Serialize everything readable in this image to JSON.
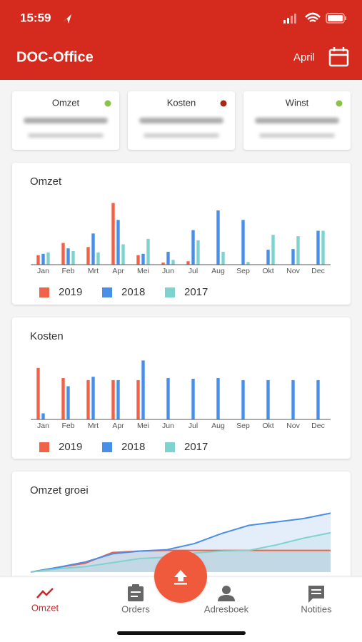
{
  "status_bar": {
    "time": "15:59"
  },
  "header": {
    "title": "DOC-Office",
    "month": "April"
  },
  "summary": [
    {
      "label": "Omzet",
      "color": "#8bc34a"
    },
    {
      "label": "Kosten",
      "color": "#a52714"
    },
    {
      "label": "Winst",
      "color": "#8bc34a"
    }
  ],
  "chart_data": [
    {
      "type": "bar",
      "title": "Omzet",
      "categories": [
        "Jan",
        "Feb",
        "Mrt",
        "Apr",
        "Mei",
        "Jun",
        "Jul",
        "Aug",
        "Sep",
        "Okt",
        "Nov",
        "Dec"
      ],
      "ylim": [
        0,
        100
      ],
      "series": [
        {
          "name": "2019",
          "color": "#f0624a",
          "values": [
            14,
            32,
            26,
            91,
            14,
            3,
            5,
            null,
            null,
            null,
            null,
            null
          ]
        },
        {
          "name": "2018",
          "color": "#4a8fe7",
          "values": [
            16,
            24,
            46,
            66,
            16,
            19,
            51,
            80,
            66,
            22,
            23,
            50
          ]
        },
        {
          "name": "2017",
          "color": "#7ed3cf",
          "values": [
            18,
            20,
            18,
            30,
            38,
            7,
            36,
            19,
            4,
            44,
            42,
            50
          ]
        }
      ]
    },
    {
      "type": "bar",
      "title": "Kosten",
      "categories": [
        "Jan",
        "Feb",
        "Mrt",
        "Apr",
        "Mei",
        "Jun",
        "Jul",
        "Aug",
        "Sep",
        "Okt",
        "Nov",
        "Dec"
      ],
      "ylim": [
        0,
        100
      ],
      "series": [
        {
          "name": "2019",
          "color": "#f0624a",
          "values": [
            76,
            61,
            58,
            58,
            58,
            null,
            null,
            null,
            null,
            null,
            null,
            null
          ]
        },
        {
          "name": "2018",
          "color": "#4a8fe7",
          "values": [
            9,
            49,
            63,
            58,
            87,
            61,
            60,
            61,
            58,
            58,
            58,
            58
          ]
        },
        {
          "name": "2017",
          "color": "#7ed3cf",
          "values": [
            null,
            null,
            null,
            null,
            null,
            null,
            null,
            null,
            null,
            null,
            null,
            null
          ]
        }
      ]
    },
    {
      "type": "line",
      "title": "Omzet groei",
      "ylim": [
        0,
        100
      ],
      "series": [
        {
          "name": "2019",
          "color": "#f0624a",
          "values": [
            0,
            7,
            13,
            29,
            31,
            32,
            32,
            32,
            32,
            32,
            32,
            32
          ]
        },
        {
          "name": "2018",
          "color": "#4a8fe7",
          "values": [
            0,
            7,
            15,
            27,
            31,
            33,
            42,
            57,
            69,
            74,
            79,
            87
          ]
        },
        {
          "name": "2017",
          "color": "#7ed3cf",
          "values": [
            0,
            5,
            8,
            14,
            20,
            22,
            28,
            31,
            32,
            40,
            50,
            58
          ]
        }
      ]
    }
  ],
  "nav": [
    {
      "label": "Omzet",
      "active": true
    },
    {
      "label": "Orders",
      "active": false
    },
    {
      "label": "Adresboek",
      "active": false
    },
    {
      "label": "Notities",
      "active": false
    }
  ]
}
